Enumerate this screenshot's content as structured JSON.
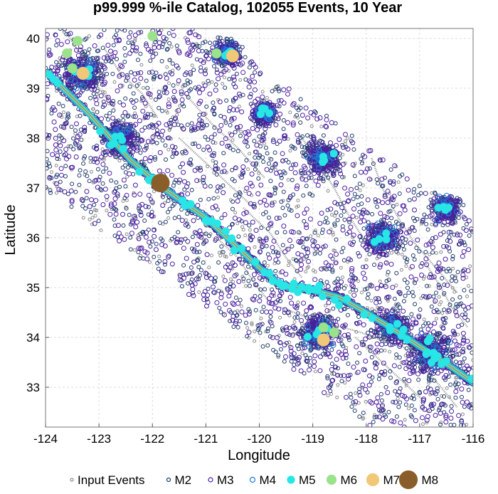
{
  "chart_data": {
    "type": "scatter",
    "title": "p99.999 %-ile Catalog, 102055 Events, 10 Year",
    "xlabel": "Longitude",
    "ylabel": "Latitude",
    "xlim": [
      -124,
      -116
    ],
    "ylim": [
      32.2,
      40.2
    ],
    "x_ticks": [
      -124,
      -123,
      -122,
      -121,
      -120,
      -119,
      -118,
      -117,
      -116
    ],
    "x_tick_labels": [
      "-124",
      "-123",
      "-122",
      "-121",
      "-120",
      "-119",
      "-118",
      "-117",
      "-116"
    ],
    "y_ticks": [
      33,
      34,
      35,
      36,
      37,
      38,
      39,
      40
    ],
    "y_tick_labels": [
      "33",
      "34",
      "35",
      "36",
      "37",
      "38",
      "39",
      "40"
    ],
    "grid": true,
    "legend_position": "bottom",
    "fault_trace_color": "#8c8c8c",
    "main_fault_trace": [
      [
        -124.0,
        39.35
      ],
      [
        -123.2,
        38.5
      ],
      [
        -122.4,
        37.55
      ],
      [
        -121.8,
        37.0
      ],
      [
        -121.0,
        36.4
      ],
      [
        -120.5,
        35.9
      ],
      [
        -120.0,
        35.4
      ],
      [
        -119.6,
        35.05
      ],
      [
        -119.0,
        34.95
      ],
      [
        -118.5,
        34.8
      ],
      [
        -118.0,
        34.5
      ],
      [
        -117.4,
        34.1
      ],
      [
        -116.9,
        33.75
      ],
      [
        -116.4,
        33.4
      ],
      [
        -116.0,
        33.1
      ]
    ],
    "series": [
      {
        "name": "Input Events",
        "color": "#8c8c8c",
        "marker": "open-circle",
        "radius": 2
      },
      {
        "name": "M2",
        "color": "#1f3a6e",
        "marker": "open-circle",
        "radius": 2.5
      },
      {
        "name": "M3",
        "color": "#4b1fa0",
        "marker": "open-circle",
        "radius": 3
      },
      {
        "name": "M4",
        "color": "#1e7bd8",
        "marker": "open-circle",
        "radius": 3.5
      },
      {
        "name": "M5",
        "color": "#28e6e6",
        "marker": "filled-circle",
        "radius": 5
      },
      {
        "name": "M6",
        "color": "#9be38a",
        "marker": "filled-circle",
        "radius": 6.5,
        "points": [
          [
            -123.6,
            39.7
          ],
          [
            -123.4,
            39.95
          ],
          [
            -123.5,
            39.4
          ],
          [
            -122.0,
            40.05
          ],
          [
            -120.8,
            39.7
          ],
          [
            -118.8,
            34.2
          ],
          [
            -118.6,
            34.1
          ]
        ]
      },
      {
        "name": "M7",
        "color": "#f0c878",
        "marker": "filled-circle",
        "radius": 8.5,
        "points": [
          [
            -123.3,
            39.3
          ],
          [
            -120.5,
            39.65
          ],
          [
            -118.8,
            33.95
          ]
        ]
      },
      {
        "name": "M8",
        "color": "#8a5e2a",
        "marker": "filled-circle",
        "radius": 12.5,
        "points": [
          [
            -121.85,
            37.1
          ]
        ]
      }
    ],
    "clusters": [
      {
        "lon": -123.3,
        "lat": 39.3,
        "spread": 0.35
      },
      {
        "lon": -122.6,
        "lat": 38.0,
        "spread": 0.3
      },
      {
        "lon": -120.6,
        "lat": 39.7,
        "spread": 0.25
      },
      {
        "lon": -119.9,
        "lat": 38.5,
        "spread": 0.2
      },
      {
        "lon": -118.8,
        "lat": 37.6,
        "spread": 0.3
      },
      {
        "lon": -117.7,
        "lat": 36.0,
        "spread": 0.3
      },
      {
        "lon": -116.5,
        "lat": 36.6,
        "spread": 0.25
      },
      {
        "lon": -118.9,
        "lat": 34.1,
        "spread": 0.35
      },
      {
        "lon": -116.8,
        "lat": 33.7,
        "spread": 0.45
      },
      {
        "lon": -117.5,
        "lat": 34.2,
        "spread": 0.3
      }
    ]
  }
}
